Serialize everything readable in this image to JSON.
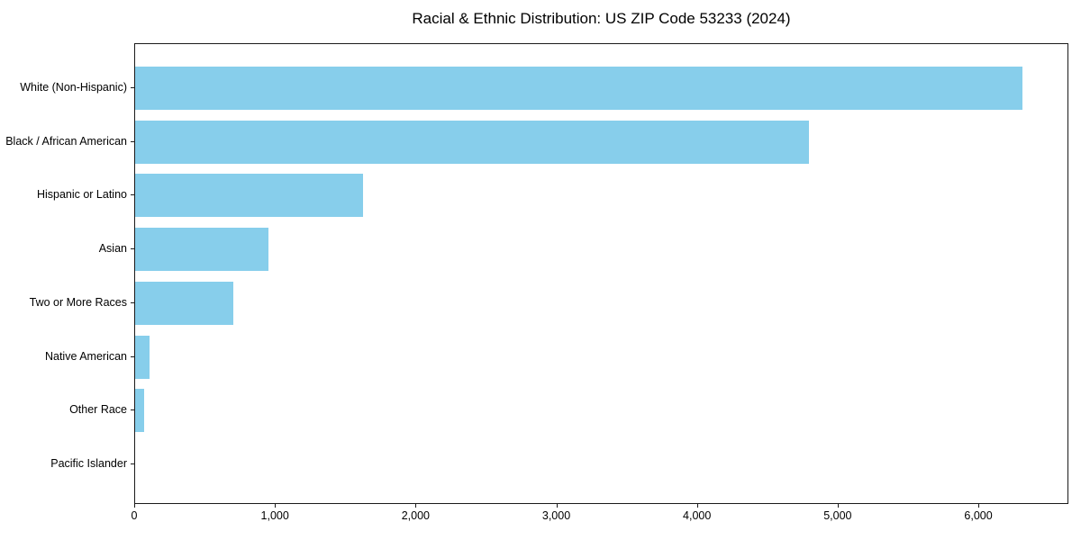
{
  "chart_data": {
    "type": "bar",
    "orientation": "horizontal",
    "title": "Racial & Ethnic Distribution: US ZIP Code 53233 (2024)",
    "categories": [
      "White (Non-Hispanic)",
      "Black / African American",
      "Hispanic or Latino",
      "Asian",
      "Two or More Races",
      "Native American",
      "Other Race",
      "Pacific Islander"
    ],
    "values": [
      6310,
      4790,
      1620,
      950,
      700,
      105,
      65,
      0
    ],
    "xlabel": "",
    "ylabel": "",
    "xlim": [
      0,
      6640
    ],
    "x_ticks": [
      0,
      1000,
      2000,
      3000,
      4000,
      5000,
      6000
    ],
    "x_tick_labels": [
      "0",
      "1,000",
      "2,000",
      "3,000",
      "4,000",
      "5,000",
      "6,000"
    ],
    "bar_color": "#87CEEB",
    "frame_color": "#1a1a1a",
    "grid": false,
    "legend": null
  }
}
